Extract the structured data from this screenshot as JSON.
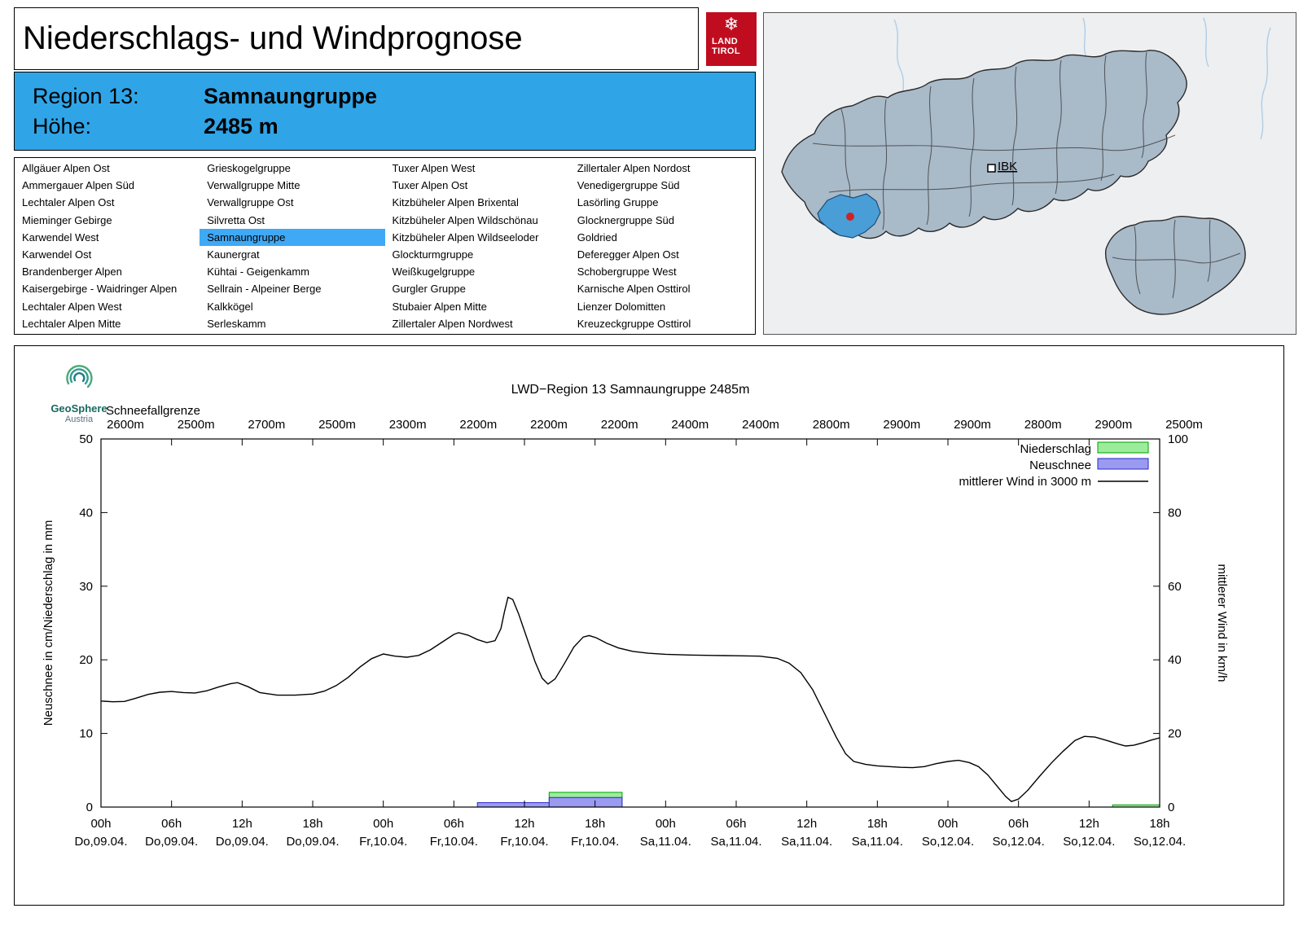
{
  "header": {
    "title": "Niederschlags- und Windprognose"
  },
  "logo": {
    "line1": "LAND",
    "line2": "TIROL",
    "snowflake": "❄",
    "color": "#bf0d1f"
  },
  "region_info": {
    "region_label": "Region 13:",
    "region_value": "Samnaungruppe",
    "altitude_label": "Höhe:",
    "altitude_value": "2485 m",
    "bg": "#2fa5e8"
  },
  "map": {
    "city_label": "IBK",
    "land_fill": "#a9bac9",
    "highlight_color": "#4a9ed8",
    "marker_color": "#cc2424",
    "bg": "#edeff1"
  },
  "region_list": {
    "selected": "Samnaungruppe",
    "highlight_color": "#3fa9f5",
    "columns": [
      [
        "Allgäuer Alpen Ost",
        "Ammergauer Alpen Süd",
        "Lechtaler Alpen Ost",
        "Mieminger Gebirge",
        "Karwendel West",
        "Karwendel Ost",
        "Brandenberger Alpen",
        "Kaisergebirge - Waidringer Alpen",
        "Lechtaler Alpen West",
        "Lechtaler Alpen Mitte"
      ],
      [
        "Grieskogelgruppe",
        "Verwallgruppe Mitte",
        "Verwallgruppe Ost",
        "Silvretta Ost",
        "Samnaungruppe",
        "Kaunergrat",
        "Kühtai - Geigenkamm",
        "Sellrain - Alpeiner Berge",
        "Kalkkögel",
        "Serleskamm"
      ],
      [
        "Tuxer Alpen West",
        "Tuxer Alpen Ost",
        "Kitzbüheler Alpen Brixental",
        "Kitzbüheler Alpen Wildschönau",
        "Kitzbüheler Alpen Wildseeloder",
        "Glockturmgruppe",
        "Weißkugelgruppe",
        "Gurgler Gruppe",
        "Stubaier Alpen Mitte",
        "Zillertaler Alpen Nordwest"
      ],
      [
        "Zillertaler Alpen Nordost",
        "Venedigergruppe Süd",
        "Lasörling Gruppe",
        "Glocknergruppe Süd",
        "Goldried",
        "Deferegger Alpen Ost",
        "Schobergruppe West",
        "Karnische Alpen Osttirol",
        "Lienzer Dolomitten",
        "Kreuzeckgruppe Osttirol"
      ]
    ]
  },
  "geosphere": {
    "name": "GeoSphere",
    "sub": "Austria"
  },
  "chart_data": {
    "type": "line+bar",
    "title": "LWD−Region 13 Samnaungruppe 2485m",
    "snowline_label": "Schneefallgrenze",
    "snowline_values": [
      "2600m",
      "2500m",
      "2700m",
      "2500m",
      "2300m",
      "2200m",
      "2200m",
      "2200m",
      "2400m",
      "2400m",
      "2800m",
      "2900m",
      "2900m",
      "2800m",
      "2900m",
      "2500m"
    ],
    "ylabel_left": "Neuschnee in cm/Niederschlag in mm",
    "ylabel_right": "mittlerer Wind in km/h",
    "ylim_left": [
      0,
      50
    ],
    "ylim_right": [
      0,
      100
    ],
    "yticks_left": [
      0,
      10,
      20,
      30,
      40,
      50
    ],
    "yticks_right": [
      0,
      20,
      40,
      60,
      80,
      100
    ],
    "x_hours_range": [
      0,
      90
    ],
    "xticks": [
      {
        "hour": "00h",
        "date": "Do,09.04."
      },
      {
        "hour": "06h",
        "date": "Do,09.04."
      },
      {
        "hour": "12h",
        "date": "Do,09.04."
      },
      {
        "hour": "18h",
        "date": "Do,09.04."
      },
      {
        "hour": "00h",
        "date": "Fr,10.04."
      },
      {
        "hour": "06h",
        "date": "Fr,10.04."
      },
      {
        "hour": "12h",
        "date": "Fr,10.04."
      },
      {
        "hour": "18h",
        "date": "Fr,10.04."
      },
      {
        "hour": "00h",
        "date": "Sa,11.04."
      },
      {
        "hour": "06h",
        "date": "Sa,11.04."
      },
      {
        "hour": "12h",
        "date": "Sa,11.04."
      },
      {
        "hour": "18h",
        "date": "Sa,11.04."
      },
      {
        "hour": "00h",
        "date": "So,12.04."
      },
      {
        "hour": "06h",
        "date": "So,12.04."
      },
      {
        "hour": "12h",
        "date": "So,12.04."
      },
      {
        "hour": "18h",
        "date": "So,12.04."
      }
    ],
    "legend": [
      {
        "label": "Niederschlag",
        "swatch": "niederschlag"
      },
      {
        "label": "Neuschnee",
        "swatch": "neuschnee"
      },
      {
        "label": "mittlerer Wind in 3000 m",
        "swatch": "line"
      }
    ],
    "colors": {
      "niederschlag_fill": "#9cec9c",
      "niederschlag_stroke": "#00a000",
      "neuschnee_fill": "#9a9af0",
      "neuschnee_stroke": "#2828c8",
      "wind_stroke": "#000000"
    },
    "bars_niederschlag_mm": [
      {
        "from_h": 38.1,
        "to_h": 44.3,
        "mm": 2.0
      },
      {
        "from_h": 86.0,
        "to_h": 90.0,
        "mm": 0.3
      }
    ],
    "bars_neuschnee_cm": [
      {
        "from_h": 32.0,
        "to_h": 38.1,
        "cm": 0.6
      },
      {
        "from_h": 38.1,
        "to_h": 44.3,
        "cm": 1.3
      }
    ],
    "wind_points_kmh": [
      [
        0,
        28.8
      ],
      [
        1,
        28.6
      ],
      [
        2,
        28.7
      ],
      [
        3,
        29.6
      ],
      [
        4,
        30.6
      ],
      [
        5,
        31.2
      ],
      [
        6,
        31.4
      ],
      [
        7,
        31.1
      ],
      [
        8,
        31.0
      ],
      [
        9,
        31.6
      ],
      [
        10,
        32.6
      ],
      [
        11,
        33.5
      ],
      [
        11.6,
        33.8
      ],
      [
        12.5,
        32.7
      ],
      [
        13.5,
        31.1
      ],
      [
        15,
        30.4
      ],
      [
        16.5,
        30.4
      ],
      [
        18,
        30.7
      ],
      [
        19,
        31.5
      ],
      [
        20,
        33.0
      ],
      [
        21,
        35.2
      ],
      [
        22,
        38.0
      ],
      [
        23,
        40.3
      ],
      [
        24,
        41.6
      ],
      [
        25,
        41.0
      ],
      [
        26,
        40.7
      ],
      [
        27,
        41.2
      ],
      [
        28,
        42.7
      ],
      [
        29,
        44.8
      ],
      [
        30,
        46.9
      ],
      [
        30.4,
        47.4
      ],
      [
        31.2,
        46.7
      ],
      [
        32,
        45.5
      ],
      [
        32.8,
        44.7
      ],
      [
        33.5,
        45.2
      ],
      [
        34,
        48.5
      ],
      [
        34.3,
        53.0
      ],
      [
        34.6,
        57.0
      ],
      [
        35,
        56.4
      ],
      [
        35.5,
        52.5
      ],
      [
        36.2,
        46.0
      ],
      [
        36.9,
        39.5
      ],
      [
        37.5,
        35.0
      ],
      [
        38,
        33.4
      ],
      [
        38.6,
        34.8
      ],
      [
        39.4,
        39.0
      ],
      [
        40.2,
        43.5
      ],
      [
        41,
        46.2
      ],
      [
        41.5,
        46.6
      ],
      [
        42.1,
        46.0
      ],
      [
        43,
        44.5
      ],
      [
        44,
        43.2
      ],
      [
        45.2,
        42.3
      ],
      [
        46.5,
        41.8
      ],
      [
        48,
        41.5
      ],
      [
        50,
        41.3
      ],
      [
        52,
        41.2
      ],
      [
        54,
        41.1
      ],
      [
        56,
        41.0
      ],
      [
        57.5,
        40.4
      ],
      [
        58.5,
        39.1
      ],
      [
        59.5,
        36.5
      ],
      [
        60.5,
        31.9
      ],
      [
        61.5,
        25.5
      ],
      [
        62.5,
        19.0
      ],
      [
        63.3,
        14.5
      ],
      [
        64,
        12.4
      ],
      [
        65,
        11.6
      ],
      [
        66,
        11.2
      ],
      [
        67,
        11.0
      ],
      [
        68,
        10.8
      ],
      [
        69,
        10.7
      ],
      [
        70,
        11.0
      ],
      [
        71,
        11.8
      ],
      [
        72,
        12.4
      ],
      [
        72.9,
        12.7
      ],
      [
        73.8,
        12.1
      ],
      [
        74.6,
        11.0
      ],
      [
        75.4,
        8.7
      ],
      [
        76.2,
        5.6
      ],
      [
        76.9,
        2.9
      ],
      [
        77.4,
        1.5
      ],
      [
        78,
        2.2
      ],
      [
        78.8,
        4.6
      ],
      [
        79.8,
        8.4
      ],
      [
        80.8,
        12.0
      ],
      [
        81.8,
        15.2
      ],
      [
        82.8,
        18.1
      ],
      [
        83.6,
        19.2
      ],
      [
        84.5,
        19.0
      ],
      [
        85.5,
        18.1
      ],
      [
        86.5,
        17.1
      ],
      [
        87.1,
        16.6
      ],
      [
        87.8,
        16.8
      ],
      [
        88.6,
        17.5
      ],
      [
        89.3,
        18.2
      ],
      [
        90,
        18.8
      ]
    ]
  }
}
